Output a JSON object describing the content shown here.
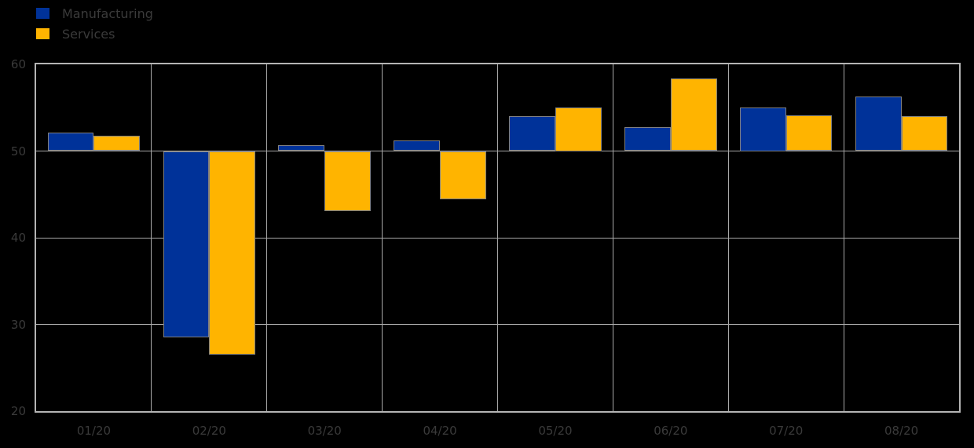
{
  "chart_data": {
    "type": "bar",
    "title": "",
    "xlabel": "",
    "ylabel": "",
    "categories": [
      "01/20",
      "02/20",
      "03/20",
      "04/20",
      "05/20",
      "06/20",
      "07/20",
      "08/20"
    ],
    "series": [
      {
        "name": "Manufacturing",
        "color": "#003299",
        "values": [
          52.1,
          28.5,
          50.7,
          51.2,
          54.0,
          52.8,
          55.0,
          56.3
        ]
      },
      {
        "name": "Services",
        "color": "#FFB400",
        "values": [
          51.8,
          26.5,
          43.1,
          44.4,
          55.0,
          58.4,
          54.1,
          54.0
        ]
      }
    ],
    "baseline": 50,
    "ylim": [
      20,
      60
    ],
    "yticks": [
      20,
      30,
      40,
      50,
      60
    ],
    "grid": true,
    "legend_position": "top-left",
    "style": {
      "background": "#000000",
      "text_color": "#3a3a3a",
      "grid_color": "#a9a9a9",
      "spine_color": "#b4b4b4",
      "bar_edge_color": "#808080"
    }
  }
}
